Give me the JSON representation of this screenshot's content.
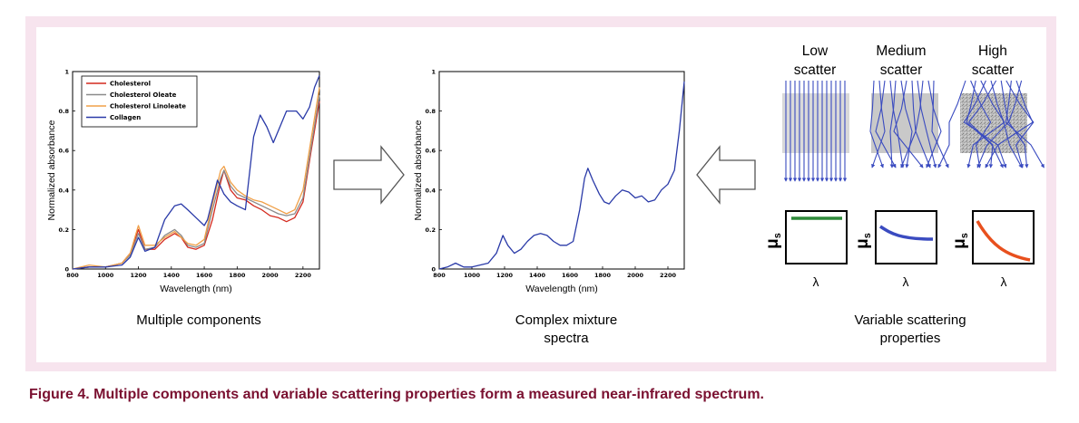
{
  "figure": {
    "caption": "Figure 4. Multiple components and variable scattering properties form a measured near-infrared spectrum.",
    "frame_color": "#f7e4ee",
    "caption_color": "#7a1030"
  },
  "panels": {
    "left_label": "Multiple components",
    "middle_label_line1": "Complex mixture",
    "middle_label_line2": "spectra",
    "right_label_line1": "Variable scattering",
    "right_label_line2": "properties"
  },
  "scattering": {
    "low_line1": "Low",
    "low_line2": "scatter",
    "medium_line1": "Medium",
    "medium_line2": "scatter",
    "high_line1": "High",
    "high_line2": "scatter",
    "mu_label": "μ",
    "mu_sub": "s",
    "lambda_label": "λ",
    "arrow_color": "#3a4bc0",
    "curve_low_color": "#2e8a3a",
    "curve_medium_color": "#3a4bc0",
    "curve_high_color": "#e8501e"
  },
  "chart_data": [
    {
      "type": "line",
      "title": "",
      "xlabel": "Wavelength (nm)",
      "ylabel": "Normalized absorbance",
      "xlim": [
        800,
        2300
      ],
      "ylim": [
        0,
        1
      ],
      "x_ticks": [
        "800",
        "1000",
        "1200",
        "1400",
        "1600",
        "1800",
        "2000",
        "2200"
      ],
      "y_ticks": [
        "0",
        "0.2",
        "0.4",
        "0.6",
        "0.8",
        "1"
      ],
      "legend_position": "top-left",
      "series": [
        {
          "name": "Cholesterol",
          "color": "#d42a1e",
          "points": [
            [
              800,
              0.0
            ],
            [
              900,
              0.01
            ],
            [
              1000,
              0.01
            ],
            [
              1100,
              0.03
            ],
            [
              1150,
              0.08
            ],
            [
              1200,
              0.2
            ],
            [
              1240,
              0.1
            ],
            [
              1300,
              0.1
            ],
            [
              1360,
              0.15
            ],
            [
              1420,
              0.18
            ],
            [
              1460,
              0.16
            ],
            [
              1500,
              0.11
            ],
            [
              1550,
              0.1
            ],
            [
              1600,
              0.12
            ],
            [
              1650,
              0.25
            ],
            [
              1700,
              0.44
            ],
            [
              1720,
              0.5
            ],
            [
              1760,
              0.4
            ],
            [
              1800,
              0.36
            ],
            [
              1850,
              0.35
            ],
            [
              1900,
              0.32
            ],
            [
              1950,
              0.3
            ],
            [
              2000,
              0.27
            ],
            [
              2050,
              0.26
            ],
            [
              2100,
              0.24
            ],
            [
              2150,
              0.26
            ],
            [
              2200,
              0.34
            ],
            [
              2250,
              0.6
            ],
            [
              2300,
              0.85
            ]
          ]
        },
        {
          "name": "Cholesterol Oleate",
          "color": "#8a8a8a",
          "points": [
            [
              800,
              0.0
            ],
            [
              900,
              0.01
            ],
            [
              1000,
              0.01
            ],
            [
              1100,
              0.03
            ],
            [
              1150,
              0.07
            ],
            [
              1200,
              0.18
            ],
            [
              1240,
              0.1
            ],
            [
              1300,
              0.11
            ],
            [
              1360,
              0.17
            ],
            [
              1420,
              0.2
            ],
            [
              1460,
              0.17
            ],
            [
              1500,
              0.12
            ],
            [
              1550,
              0.11
            ],
            [
              1600,
              0.13
            ],
            [
              1650,
              0.3
            ],
            [
              1700,
              0.46
            ],
            [
              1720,
              0.5
            ],
            [
              1760,
              0.42
            ],
            [
              1800,
              0.38
            ],
            [
              1850,
              0.36
            ],
            [
              1900,
              0.34
            ],
            [
              1950,
              0.32
            ],
            [
              2000,
              0.3
            ],
            [
              2050,
              0.28
            ],
            [
              2100,
              0.27
            ],
            [
              2150,
              0.28
            ],
            [
              2200,
              0.36
            ],
            [
              2250,
              0.62
            ],
            [
              2300,
              0.88
            ]
          ]
        },
        {
          "name": "Cholesterol Linoleate",
          "color": "#f0a048",
          "points": [
            [
              800,
              0.0
            ],
            [
              900,
              0.02
            ],
            [
              1000,
              0.01
            ],
            [
              1100,
              0.03
            ],
            [
              1150,
              0.08
            ],
            [
              1200,
              0.22
            ],
            [
              1240,
              0.12
            ],
            [
              1300,
              0.12
            ],
            [
              1360,
              0.16
            ],
            [
              1420,
              0.19
            ],
            [
              1460,
              0.16
            ],
            [
              1500,
              0.13
            ],
            [
              1550,
              0.12
            ],
            [
              1600,
              0.15
            ],
            [
              1650,
              0.33
            ],
            [
              1700,
              0.5
            ],
            [
              1720,
              0.52
            ],
            [
              1760,
              0.44
            ],
            [
              1800,
              0.4
            ],
            [
              1850,
              0.37
            ],
            [
              1900,
              0.35
            ],
            [
              1950,
              0.34
            ],
            [
              2000,
              0.32
            ],
            [
              2050,
              0.3
            ],
            [
              2100,
              0.28
            ],
            [
              2150,
              0.3
            ],
            [
              2200,
              0.4
            ],
            [
              2250,
              0.66
            ],
            [
              2300,
              0.92
            ]
          ]
        },
        {
          "name": "Collagen",
          "color": "#2a3aa8",
          "points": [
            [
              800,
              0.0
            ],
            [
              900,
              0.01
            ],
            [
              1000,
              0.01
            ],
            [
              1100,
              0.02
            ],
            [
              1150,
              0.06
            ],
            [
              1200,
              0.16
            ],
            [
              1240,
              0.09
            ],
            [
              1300,
              0.11
            ],
            [
              1360,
              0.25
            ],
            [
              1420,
              0.32
            ],
            [
              1460,
              0.33
            ],
            [
              1500,
              0.3
            ],
            [
              1550,
              0.26
            ],
            [
              1600,
              0.22
            ],
            [
              1620,
              0.25
            ],
            [
              1680,
              0.45
            ],
            [
              1720,
              0.38
            ],
            [
              1760,
              0.34
            ],
            [
              1800,
              0.32
            ],
            [
              1850,
              0.3
            ],
            [
              1900,
              0.67
            ],
            [
              1940,
              0.78
            ],
            [
              1980,
              0.72
            ],
            [
              2020,
              0.64
            ],
            [
              2060,
              0.72
            ],
            [
              2100,
              0.8
            ],
            [
              2160,
              0.8
            ],
            [
              2200,
              0.76
            ],
            [
              2240,
              0.82
            ],
            [
              2270,
              0.92
            ],
            [
              2300,
              0.98
            ]
          ]
        }
      ]
    },
    {
      "type": "line",
      "title": "",
      "xlabel": "Wavelength (nm)",
      "ylabel": "Normalized absorbance",
      "xlim": [
        800,
        2300
      ],
      "ylim": [
        0,
        1
      ],
      "x_ticks": [
        "800",
        "1000",
        "1200",
        "1400",
        "1600",
        "1800",
        "2000",
        "2200"
      ],
      "y_ticks": [
        "0",
        "0.2",
        "0.4",
        "0.6",
        "0.8",
        "1"
      ],
      "series": [
        {
          "color": "#2a3aa8",
          "points": [
            [
              800,
              0.0
            ],
            [
              850,
              0.01
            ],
            [
              900,
              0.03
            ],
            [
              950,
              0.01
            ],
            [
              1000,
              0.01
            ],
            [
              1100,
              0.03
            ],
            [
              1150,
              0.08
            ],
            [
              1190,
              0.17
            ],
            [
              1220,
              0.12
            ],
            [
              1260,
              0.08
            ],
            [
              1300,
              0.1
            ],
            [
              1340,
              0.14
            ],
            [
              1380,
              0.17
            ],
            [
              1420,
              0.18
            ],
            [
              1460,
              0.17
            ],
            [
              1500,
              0.14
            ],
            [
              1540,
              0.12
            ],
            [
              1580,
              0.12
            ],
            [
              1620,
              0.14
            ],
            [
              1660,
              0.3
            ],
            [
              1690,
              0.46
            ],
            [
              1710,
              0.51
            ],
            [
              1740,
              0.45
            ],
            [
              1780,
              0.38
            ],
            [
              1810,
              0.34
            ],
            [
              1840,
              0.33
            ],
            [
              1880,
              0.37
            ],
            [
              1920,
              0.4
            ],
            [
              1960,
              0.39
            ],
            [
              2000,
              0.36
            ],
            [
              2040,
              0.37
            ],
            [
              2080,
              0.34
            ],
            [
              2120,
              0.35
            ],
            [
              2160,
              0.4
            ],
            [
              2200,
              0.43
            ],
            [
              2240,
              0.5
            ],
            [
              2270,
              0.7
            ],
            [
              2300,
              0.95
            ]
          ]
        }
      ]
    }
  ]
}
